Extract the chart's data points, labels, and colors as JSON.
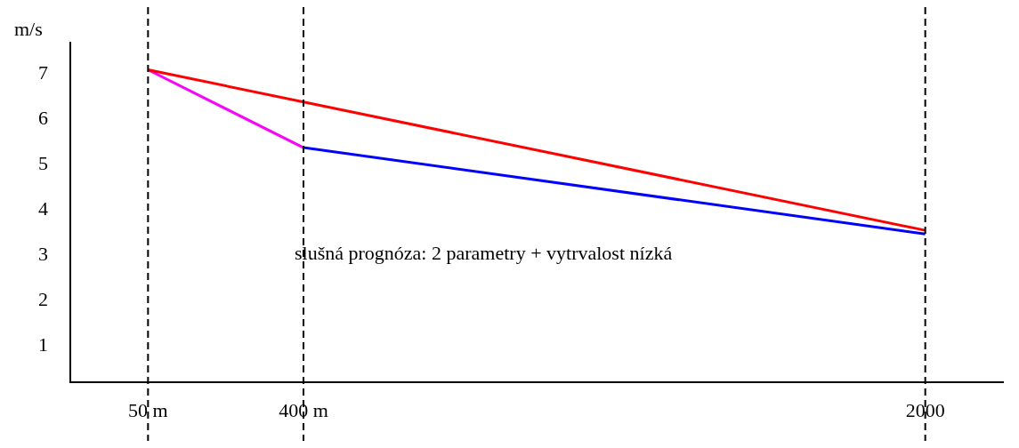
{
  "chart_data": {
    "type": "line",
    "ylabel": "m/s",
    "categories": [
      "50 m",
      "400 m",
      null,
      null,
      null,
      "2000"
    ],
    "series": [
      {
        "color": "#ff0000",
        "values": [
          7.1,
          null,
          null,
          null,
          null,
          3.55
        ]
      },
      {
        "color": "#ff00ff",
        "values": [
          7.1,
          5.38,
          null,
          null,
          null,
          null
        ]
      },
      {
        "color": "#0000ff",
        "values": [
          null,
          5.38,
          null,
          null,
          null,
          3.47
        ]
      }
    ],
    "ylim": [
      0.2,
      7.7
    ],
    "yticks": [
      1,
      2,
      3,
      4,
      5,
      6,
      7
    ],
    "grid": false,
    "legend": false,
    "marker": "none",
    "line_style": "solid",
    "ref_lines": [
      {
        "axis": "x",
        "value": "50 m",
        "color": "#000000",
        "line_style": "dashed"
      },
      {
        "axis": "x",
        "value": "400 m",
        "color": "#000000",
        "line_style": "dashed"
      },
      {
        "axis": "x",
        "value": "2000",
        "color": "#000000",
        "line_style": "dashed"
      }
    ],
    "annotations": [
      "slušná prognóza: 2 parametry + vytrvalost nízká"
    ]
  }
}
